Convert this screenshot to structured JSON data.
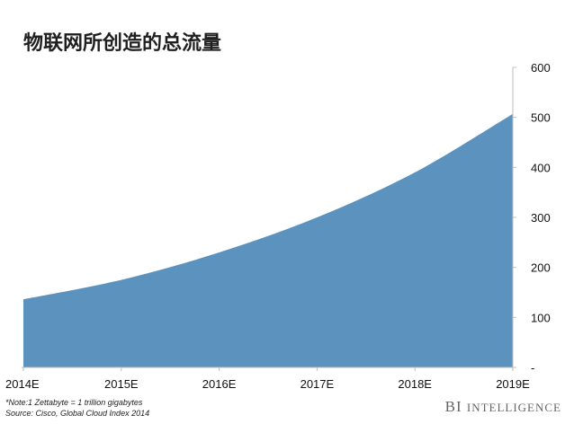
{
  "chart_data": {
    "type": "area",
    "title": "物联网所创造的总流量",
    "categories": [
      "2014E",
      "2015E",
      "2016E",
      "2017E",
      "2018E",
      "2019E"
    ],
    "values": [
      136,
      175,
      230,
      300,
      390,
      507
    ],
    "ylim": [
      0,
      600
    ],
    "yticks": [
      0,
      100,
      200,
      300,
      400,
      500,
      600
    ],
    "ytick_labels": [
      "-",
      "100",
      "200",
      "300",
      "400",
      "500",
      "600"
    ],
    "y_axis_position": "right",
    "fill_color": "#5c92be",
    "grid": false
  },
  "footnote": {
    "note": "*Note:1 Zettabyte = 1 trillion gigabytes",
    "source": "Source: Cisco, Global Cloud Index 2014"
  },
  "brand": {
    "bi": "BI",
    "intelligence": "Intelligence"
  }
}
